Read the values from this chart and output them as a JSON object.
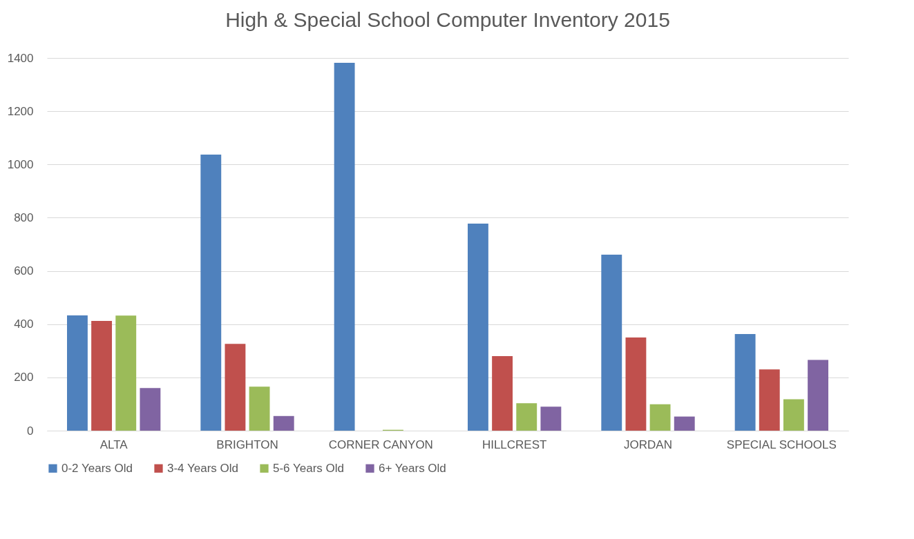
{
  "chart_data": {
    "type": "bar",
    "title": "High & Special School Computer Inventory 2015",
    "categories": [
      "ALTA",
      "BRIGHTON",
      "CORNER CANYON",
      "HILLCREST",
      "JORDAN",
      "SPECIAL SCHOOLS"
    ],
    "series": [
      {
        "name": "0-2 Years Old",
        "color": "#4f81bd",
        "values": [
          433,
          1037,
          1382,
          778,
          661,
          363
        ]
      },
      {
        "name": "3-4 Years Old",
        "color": "#c0504d",
        "values": [
          412,
          326,
          0,
          280,
          350,
          230
        ]
      },
      {
        "name": "5-6 Years Old",
        "color": "#9bbb59",
        "values": [
          432,
          165,
          3,
          103,
          99,
          118
        ]
      },
      {
        "name": "6+ Years Old",
        "color": "#8064a2",
        "values": [
          160,
          55,
          0,
          90,
          53,
          266
        ]
      }
    ],
    "ylim": [
      0,
      1400
    ],
    "yticks": [
      0,
      200,
      400,
      600,
      800,
      1000,
      1200,
      1400
    ],
    "grid": "y",
    "legend": "bottom"
  }
}
